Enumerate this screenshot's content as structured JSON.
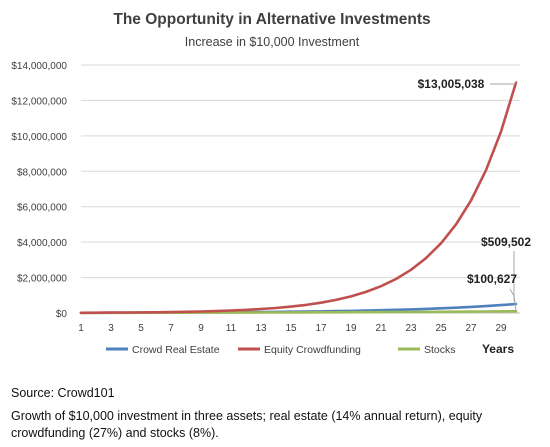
{
  "chart_data": {
    "type": "line",
    "title": "The Opportunity in Alternative Investments",
    "subtitle": "Increase in $10,000 Investment",
    "xlabel": "Years",
    "ylabel": "",
    "ylim": [
      0,
      14000000
    ],
    "yticks": [
      "$0",
      "$2,000,000",
      "$4,000,000",
      "$6,000,000",
      "$8,000,000",
      "$10,000,000",
      "$12,000,000",
      "$14,000,000"
    ],
    "ytick_values": [
      0,
      2000000,
      4000000,
      6000000,
      8000000,
      10000000,
      12000000,
      14000000
    ],
    "xticks": [
      "1",
      "3",
      "5",
      "7",
      "9",
      "11",
      "13",
      "15",
      "17",
      "19",
      "21",
      "23",
      "25",
      "27",
      "29"
    ],
    "x": [
      1,
      2,
      3,
      4,
      5,
      6,
      7,
      8,
      9,
      10,
      11,
      12,
      13,
      14,
      15,
      16,
      17,
      18,
      19,
      20,
      21,
      22,
      23,
      24,
      25,
      26,
      27,
      28,
      29,
      30
    ],
    "grid": true,
    "legend_position": "bottom",
    "series": [
      {
        "name": "Crowd Real Estate",
        "color": "#4f81bd",
        "values": [
          11400,
          12996,
          14815,
          16890,
          19254,
          21950,
          25023,
          28526,
          32519,
          37072,
          42262,
          48179,
          54924,
          62613,
          71379,
          81373,
          92765,
          105752,
          120557,
          137435,
          156676,
          178610,
          203616,
          232122,
          264619,
          301666,
          343899,
          392044,
          446931,
          509502
        ]
      },
      {
        "name": "Equity Crowdfunding",
        "color": "#c0504d",
        "values": [
          12700,
          16129,
          20484,
          26014,
          33038,
          41959,
          53288,
          67675,
          85948,
          109153,
          138625,
          176053,
          223588,
          283957,
          360625,
          457994,
          581652,
          738698,
          938147,
          1191446,
          1513137,
          1921684,
          2440538,
          3099483,
          3936343,
          4999156,
          6348928,
          8063139,
          10240186,
          13005038
        ]
      },
      {
        "name": "Stocks",
        "color": "#9bbb59",
        "values": [
          10800,
          11664,
          12597,
          13605,
          14693,
          15869,
          17138,
          18509,
          19990,
          21589,
          23316,
          25182,
          27196,
          29372,
          31722,
          34259,
          37000,
          39960,
          43157,
          46610,
          50338,
          54365,
          58715,
          63412,
          68485,
          73964,
          79881,
          86271,
          93173,
          100627
        ]
      }
    ],
    "annotations": [
      {
        "label": "$13,005,038",
        "series": "Equity Crowdfunding",
        "x": 30
      },
      {
        "label": "$509,502",
        "series": "Crowd Real Estate",
        "x": 30
      },
      {
        "label": "$100,627",
        "series": "Stocks",
        "x": 30
      }
    ]
  },
  "footer": {
    "source": "Source: Crowd101",
    "caption": "Growth of $10,000 investment in three assets; real estate (14% annual return), equity crowdfunding (27%) and stocks (8%)."
  }
}
